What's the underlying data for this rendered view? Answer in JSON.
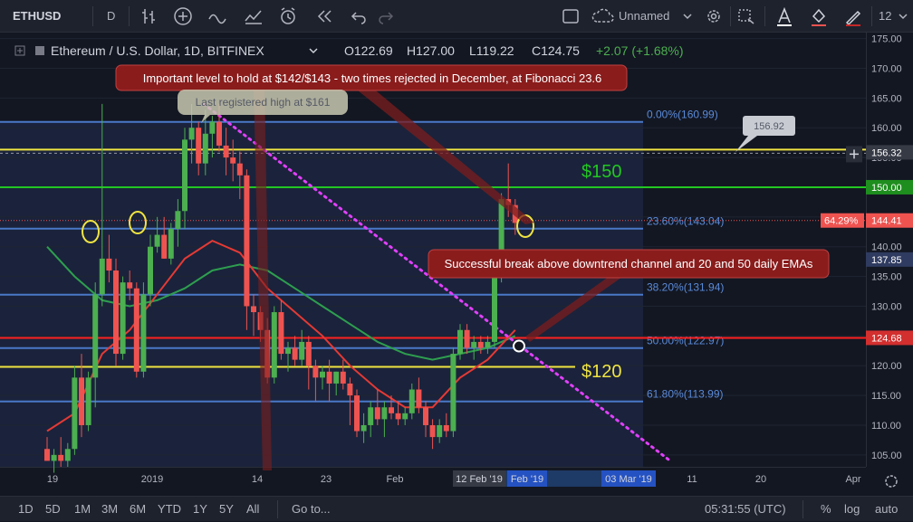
{
  "toolbar": {
    "symbol": "ETHUSD",
    "interval": "D",
    "layout_name": "Unnamed",
    "zoom": "12",
    "icons": [
      "bar-style-icon",
      "add-indicator-icon",
      "indicators-icon",
      "financials-icon",
      "alert-icon",
      "replay-icon",
      "undo-icon",
      "redo-icon",
      "fullscreen-icon",
      "cloud-icon",
      "settings-icon",
      "select-icon",
      "text-color-icon",
      "fill-color-icon",
      "brush-icon"
    ]
  },
  "legend": {
    "title": "Ethereum / U.S. Dollar, 1D, BITFINEX",
    "open": "O122.69",
    "high": "H127.00",
    "low": "L119.22",
    "close": "C124.75",
    "change": "+2.07 (+1.68%)"
  },
  "bottombar": {
    "ranges": [
      "1D",
      "5D",
      "1M",
      "3M",
      "6M",
      "YTD",
      "1Y",
      "5Y",
      "All"
    ],
    "goto": "Go to...",
    "clock": "05:31:55 (UTC)",
    "pct": "%",
    "log": "log",
    "auto": "auto"
  },
  "chart_data": {
    "type": "candlestick",
    "ylim": [
      103,
      176
    ],
    "y_ticks": [
      "175.00",
      "170.00",
      "165.00",
      "160.00",
      "155.00",
      "150.00",
      "145.00",
      "140.00",
      "135.00",
      "130.00",
      "125.00",
      "120.00",
      "115.00",
      "110.00",
      "105.00"
    ],
    "x_labels": [
      "19",
      "2019",
      "14",
      "23",
      "Feb",
      "12 Feb '19",
      "Feb '19",
      "03 Mar '19",
      "11",
      "20",
      "Apr"
    ],
    "x_index_range": [
      0,
      120
    ],
    "candles": [
      [
        0,
        106,
        108,
        104,
        104
      ],
      [
        1,
        104,
        106,
        102,
        105
      ],
      [
        2,
        105,
        108,
        103,
        104
      ],
      [
        3,
        104,
        107,
        103,
        106
      ],
      [
        4,
        106,
        120,
        105,
        118
      ],
      [
        5,
        118,
        122,
        108,
        110
      ],
      [
        6,
        110,
        119,
        109,
        118
      ],
      [
        7,
        118,
        134,
        113,
        132
      ],
      [
        8,
        132,
        164,
        130,
        138
      ],
      [
        9,
        138,
        142,
        134,
        136
      ],
      [
        10,
        136,
        138,
        120,
        122
      ],
      [
        11,
        122,
        135,
        121,
        134
      ],
      [
        12,
        134,
        136,
        131,
        133
      ],
      [
        13,
        133,
        134,
        118,
        119
      ],
      [
        14,
        119,
        134,
        118,
        132
      ],
      [
        15,
        132,
        142,
        130,
        140
      ],
      [
        16,
        140,
        145,
        139,
        142
      ],
      [
        17,
        142,
        145,
        138,
        138
      ],
      [
        18,
        138,
        144,
        137,
        143
      ],
      [
        19,
        143,
        148,
        140,
        146
      ],
      [
        20,
        146,
        160,
        143,
        158
      ],
      [
        21,
        158,
        164,
        154,
        160
      ],
      [
        22,
        160,
        161,
        152,
        154
      ],
      [
        23,
        154,
        163,
        152,
        159
      ],
      [
        24,
        159,
        162,
        155,
        161
      ],
      [
        25,
        161,
        164,
        156,
        157
      ],
      [
        26,
        157,
        160,
        152,
        155
      ],
      [
        27,
        155,
        158,
        151,
        154
      ],
      [
        28,
        154,
        156,
        148,
        152
      ],
      [
        29,
        152,
        153,
        126,
        130
      ],
      [
        30,
        130,
        132,
        125,
        129
      ],
      [
        31,
        129,
        130,
        124,
        126
      ],
      [
        32,
        126,
        128,
        117,
        118
      ],
      [
        33,
        118,
        130,
        117,
        129
      ],
      [
        34,
        129,
        131,
        121,
        122
      ],
      [
        35,
        122,
        124,
        119,
        123
      ],
      [
        36,
        123,
        125,
        120,
        121
      ],
      [
        37,
        121,
        126,
        120,
        124
      ],
      [
        38,
        124,
        125,
        116,
        120
      ],
      [
        39,
        120,
        121,
        114,
        118
      ],
      [
        40,
        118,
        120,
        116,
        119
      ],
      [
        41,
        119,
        121,
        114,
        117
      ],
      [
        42,
        117,
        119,
        115,
        119
      ],
      [
        43,
        119,
        121,
        116,
        117
      ],
      [
        44,
        117,
        118,
        110,
        115
      ],
      [
        45,
        115,
        116,
        108,
        109
      ],
      [
        46,
        109,
        112,
        107,
        110
      ],
      [
        47,
        110,
        114,
        108,
        113
      ],
      [
        48,
        113,
        116,
        110,
        111
      ],
      [
        49,
        111,
        114,
        108,
        113
      ],
      [
        50,
        113,
        115,
        111,
        112
      ],
      [
        51,
        112,
        114,
        110,
        111
      ],
      [
        52,
        111,
        113,
        110,
        112
      ],
      [
        53,
        112,
        117,
        111,
        116
      ],
      [
        54,
        116,
        118,
        112,
        113
      ],
      [
        55,
        113,
        114,
        108,
        110
      ],
      [
        56,
        110,
        111,
        106,
        108
      ],
      [
        57,
        108,
        111,
        107,
        110
      ],
      [
        58,
        110,
        112,
        108,
        109
      ],
      [
        59,
        109,
        123,
        108,
        122
      ],
      [
        60,
        122,
        127,
        121,
        126
      ],
      [
        61,
        126,
        127,
        122,
        123
      ],
      [
        62,
        123,
        125,
        121,
        124
      ],
      [
        63,
        124,
        125,
        122,
        123
      ],
      [
        64,
        123,
        125,
        122,
        124
      ],
      [
        65,
        124,
        137,
        123,
        135
      ],
      [
        66,
        135,
        149,
        134,
        148
      ],
      [
        67,
        148,
        154,
        145,
        147
      ],
      [
        68,
        147,
        148,
        142,
        144
      ]
    ],
    "ema20": [
      [
        0,
        109
      ],
      [
        4,
        112
      ],
      [
        8,
        122
      ],
      [
        12,
        126
      ],
      [
        16,
        132
      ],
      [
        20,
        138
      ],
      [
        24,
        141
      ],
      [
        28,
        139
      ],
      [
        32,
        133
      ],
      [
        36,
        129
      ],
      [
        40,
        125
      ],
      [
        44,
        120
      ],
      [
        48,
        116
      ],
      [
        52,
        113
      ],
      [
        56,
        113
      ],
      [
        60,
        118
      ],
      [
        64,
        121
      ],
      [
        68,
        126
      ]
    ],
    "ema50": [
      [
        0,
        140
      ],
      [
        4,
        135
      ],
      [
        8,
        131
      ],
      [
        12,
        130
      ],
      [
        16,
        131
      ],
      [
        20,
        133
      ],
      [
        24,
        136
      ],
      [
        28,
        137
      ],
      [
        32,
        136
      ],
      [
        36,
        133
      ],
      [
        40,
        130
      ],
      [
        44,
        127
      ],
      [
        48,
        124
      ],
      [
        52,
        122
      ],
      [
        56,
        121
      ],
      [
        60,
        122
      ],
      [
        64,
        123
      ],
      [
        68,
        125
      ]
    ],
    "fib_levels": [
      {
        "label": "0.00%(160.99)",
        "value": 160.99
      },
      {
        "label": "23.60%(143.04)",
        "value": 143.04
      },
      {
        "label": "38.20%(131.94)",
        "value": 131.94
      },
      {
        "label": "50.00%(122.97)",
        "value": 122.97
      },
      {
        "label": "61.80%(113.99)",
        "value": 113.99
      }
    ],
    "hlines": [
      {
        "value": 156.32,
        "color": "#f0e442",
        "label": "156.32"
      },
      {
        "value": 150.0,
        "color": "#22c722",
        "label": "150.00"
      },
      {
        "value": 124.68,
        "color": "#ff2020",
        "label": "124.68"
      },
      {
        "value": 119.8,
        "color": "#f0e442",
        "label": ""
      }
    ],
    "price_badges": [
      {
        "value": 144.41,
        "label": "144.41",
        "pct": "64.29%",
        "color": "#ef5350"
      },
      {
        "value": 137.85,
        "label": "137.85",
        "color": "#2f3b60"
      }
    ],
    "annotations": {
      "top_banner": "Important level to hold at $142/$143 - two times rejected in December, at Fibonacci 23.6",
      "last_high": "Last registered high at $161",
      "breakout": "Successful break above downtrend channel and 20 and 50 daily EMAs",
      "label_150": "$150",
      "label_120": "$120",
      "price_marker": "156.92"
    },
    "colors": {
      "up": "#4caf50",
      "down": "#ef5350",
      "bg": "#131722",
      "fib": "#4a78c7",
      "trend": "#e040fb"
    }
  }
}
